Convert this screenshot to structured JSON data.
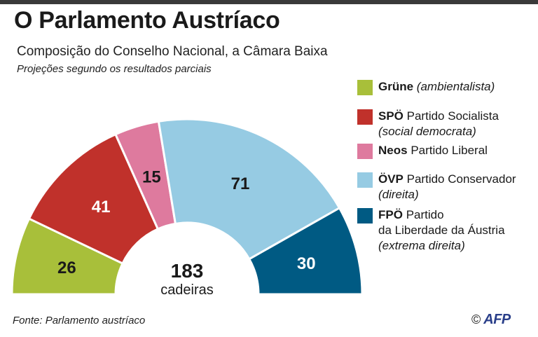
{
  "header": {
    "title": "O Parlamento Austríaco",
    "subtitle": "Composição do Conselho Nacional, a Câmara Baixa",
    "note": "Projeções segundo os resultados parciais"
  },
  "chart_data": {
    "type": "pie",
    "subtype": "half-donut",
    "title": "O Parlamento Austríaco",
    "categories": [
      "Grüne",
      "SPÖ",
      "Neos",
      "ÖVP",
      "FPÖ"
    ],
    "values": [
      26,
      41,
      15,
      71,
      30
    ],
    "colors": [
      "#a8bf3a",
      "#c0312b",
      "#de7a9e",
      "#96cbe3",
      "#005a83"
    ],
    "label_colors": [
      "#1a1a1a",
      "#ffffff",
      "#1a1a1a",
      "#1a1a1a",
      "#ffffff"
    ],
    "total": {
      "value": "183",
      "unit": "cadeiras"
    },
    "legend_position": "right"
  },
  "legend": {
    "items": [
      {
        "party": "Grüne",
        "rest": "",
        "italic_inline": "(ambientalista)",
        "lines": [],
        "italic_line": "",
        "color": "#a8bf3a"
      },
      {
        "party": "SPÖ",
        "rest": "Partido Socialista",
        "italic_inline": "",
        "lines": [],
        "italic_line": "(social democrata)",
        "color": "#c0312b"
      },
      {
        "party": "Neos",
        "rest": "Partido Liberal",
        "italic_inline": "",
        "lines": [],
        "italic_line": "",
        "color": "#de7a9e"
      },
      {
        "party": "ÖVP",
        "rest": "Partido Conservador",
        "italic_inline": "",
        "lines": [],
        "italic_line": "(direita)",
        "color": "#96cbe3"
      },
      {
        "party": "FPÖ",
        "rest": "Partido",
        "italic_inline": "",
        "lines": [
          "da Liberdade da Áustria"
        ],
        "italic_line": "(extrema direita)",
        "color": "#005a83"
      }
    ]
  },
  "footer": {
    "source": "Fonte: Parlamento austríaco",
    "copyright": "©",
    "agency": "AFP"
  }
}
